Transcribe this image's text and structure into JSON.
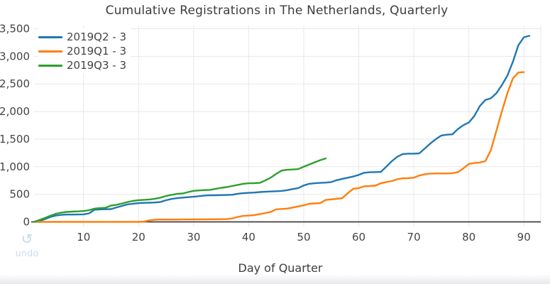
{
  "header": {
    "title": "Cumulative Registrations in The Netherlands, Quarterly"
  },
  "toolbar": {
    "undo_label": "undo",
    "undo_icon": "counterclockwise-arrow"
  },
  "palette": {
    "blue": "#1f77b4",
    "orange": "#ff7f0e",
    "green": "#2ca02c",
    "grid": "#e8e8e8",
    "axis_line": "#3f3f3f",
    "tick_text": "#444444",
    "title_text": "#3d3d3d",
    "undo": "#c3d7ee"
  },
  "chart_data": {
    "type": "line",
    "title": "Cumulative Registrations in The Netherlands, Quarterly",
    "xlabel": "Day of Quarter",
    "ylabel": "",
    "xlim": [
      0,
      93
    ],
    "ylim": [
      0,
      3600
    ],
    "x_ticks": [
      10,
      20,
      30,
      40,
      50,
      60,
      70,
      80,
      90
    ],
    "y_ticks": [
      0,
      500,
      1000,
      1500,
      2000,
      2500,
      3000,
      3500
    ],
    "grid": true,
    "legend_position": "top-left",
    "series": [
      {
        "name": "2019Q2 - 3",
        "color": "#1f77b4",
        "points": [
          [
            1,
            0
          ],
          [
            2,
            15
          ],
          [
            3,
            50
          ],
          [
            4,
            90
          ],
          [
            5,
            115
          ],
          [
            6,
            128
          ],
          [
            7,
            132
          ],
          [
            8,
            133
          ],
          [
            9,
            134
          ],
          [
            10,
            136
          ],
          [
            11,
            155
          ],
          [
            12,
            220
          ],
          [
            13,
            226
          ],
          [
            14,
            229
          ],
          [
            15,
            232
          ],
          [
            16,
            262
          ],
          [
            17,
            290
          ],
          [
            18,
            318
          ],
          [
            19,
            330
          ],
          [
            20,
            340
          ],
          [
            21,
            345
          ],
          [
            22,
            348
          ],
          [
            23,
            351
          ],
          [
            24,
            362
          ],
          [
            25,
            392
          ],
          [
            26,
            415
          ],
          [
            27,
            430
          ],
          [
            28,
            440
          ],
          [
            29,
            448
          ],
          [
            30,
            456
          ],
          [
            31,
            466
          ],
          [
            32,
            478
          ],
          [
            33,
            481
          ],
          [
            34,
            483
          ],
          [
            35,
            485
          ],
          [
            36,
            488
          ],
          [
            37,
            492
          ],
          [
            38,
            510
          ],
          [
            39,
            520
          ],
          [
            40,
            526
          ],
          [
            41,
            531
          ],
          [
            42,
            540
          ],
          [
            43,
            546
          ],
          [
            44,
            551
          ],
          [
            45,
            556
          ],
          [
            46,
            561
          ],
          [
            47,
            575
          ],
          [
            48,
            595
          ],
          [
            49,
            612
          ],
          [
            50,
            660
          ],
          [
            51,
            690
          ],
          [
            52,
            700
          ],
          [
            53,
            706
          ],
          [
            54,
            712
          ],
          [
            55,
            722
          ],
          [
            56,
            755
          ],
          [
            57,
            780
          ],
          [
            58,
            800
          ],
          [
            59,
            822
          ],
          [
            60,
            852
          ],
          [
            61,
            890
          ],
          [
            62,
            900
          ],
          [
            63,
            902
          ],
          [
            64,
            906
          ],
          [
            65,
            1000
          ],
          [
            66,
            1100
          ],
          [
            67,
            1180
          ],
          [
            68,
            1230
          ],
          [
            69,
            1236
          ],
          [
            70,
            1237
          ],
          [
            71,
            1242
          ],
          [
            72,
            1330
          ],
          [
            73,
            1420
          ],
          [
            74,
            1500
          ],
          [
            75,
            1565
          ],
          [
            76,
            1580
          ],
          [
            77,
            1587
          ],
          [
            78,
            1680
          ],
          [
            79,
            1752
          ],
          [
            80,
            1800
          ],
          [
            81,
            1920
          ],
          [
            82,
            2100
          ],
          [
            83,
            2210
          ],
          [
            84,
            2240
          ],
          [
            85,
            2330
          ],
          [
            86,
            2480
          ],
          [
            87,
            2650
          ],
          [
            88,
            2900
          ],
          [
            89,
            3200
          ],
          [
            90,
            3345
          ],
          [
            91,
            3372
          ]
        ]
      },
      {
        "name": "2019Q1 - 3",
        "color": "#ff7f0e",
        "points": [
          [
            1,
            0
          ],
          [
            5,
            0
          ],
          [
            10,
            0
          ],
          [
            15,
            0
          ],
          [
            20,
            0
          ],
          [
            21,
            5
          ],
          [
            22,
            28
          ],
          [
            23,
            40
          ],
          [
            24,
            42
          ],
          [
            26,
            43
          ],
          [
            28,
            44
          ],
          [
            30,
            45
          ],
          [
            32,
            46
          ],
          [
            34,
            47
          ],
          [
            36,
            50
          ],
          [
            37,
            62
          ],
          [
            38,
            90
          ],
          [
            39,
            108
          ],
          [
            40,
            115
          ],
          [
            41,
            121
          ],
          [
            42,
            140
          ],
          [
            43,
            158
          ],
          [
            44,
            180
          ],
          [
            45,
            228
          ],
          [
            46,
            234
          ],
          [
            47,
            240
          ],
          [
            48,
            260
          ],
          [
            49,
            280
          ],
          [
            50,
            300
          ],
          [
            51,
            328
          ],
          [
            52,
            334
          ],
          [
            53,
            340
          ],
          [
            54,
            398
          ],
          [
            55,
            408
          ],
          [
            56,
            418
          ],
          [
            57,
            430
          ],
          [
            58,
            520
          ],
          [
            59,
            600
          ],
          [
            60,
            612
          ],
          [
            61,
            645
          ],
          [
            62,
            650
          ],
          [
            63,
            656
          ],
          [
            64,
            700
          ],
          [
            65,
            722
          ],
          [
            66,
            740
          ],
          [
            67,
            772
          ],
          [
            68,
            790
          ],
          [
            69,
            792
          ],
          [
            70,
            800
          ],
          [
            71,
            840
          ],
          [
            72,
            864
          ],
          [
            73,
            874
          ],
          [
            74,
            877
          ],
          [
            75,
            877
          ],
          [
            76,
            878
          ],
          [
            77,
            882
          ],
          [
            78,
            900
          ],
          [
            79,
            970
          ],
          [
            80,
            1050
          ],
          [
            81,
            1068
          ],
          [
            82,
            1076
          ],
          [
            83,
            1100
          ],
          [
            84,
            1300
          ],
          [
            85,
            1650
          ],
          [
            86,
            2000
          ],
          [
            87,
            2330
          ],
          [
            88,
            2600
          ],
          [
            89,
            2708
          ],
          [
            90,
            2714
          ]
        ]
      },
      {
        "name": "2019Q3 - 3",
        "color": "#2ca02c",
        "points": [
          [
            1,
            0
          ],
          [
            2,
            35
          ],
          [
            3,
            72
          ],
          [
            4,
            112
          ],
          [
            5,
            148
          ],
          [
            6,
            168
          ],
          [
            7,
            180
          ],
          [
            8,
            186
          ],
          [
            9,
            190
          ],
          [
            10,
            197
          ],
          [
            11,
            212
          ],
          [
            12,
            240
          ],
          [
            13,
            250
          ],
          [
            14,
            256
          ],
          [
            15,
            296
          ],
          [
            16,
            310
          ],
          [
            17,
            332
          ],
          [
            18,
            360
          ],
          [
            19,
            380
          ],
          [
            20,
            394
          ],
          [
            21,
            400
          ],
          [
            22,
            406
          ],
          [
            23,
            420
          ],
          [
            24,
            440
          ],
          [
            25,
            470
          ],
          [
            26,
            490
          ],
          [
            27,
            508
          ],
          [
            28,
            515
          ],
          [
            29,
            540
          ],
          [
            30,
            562
          ],
          [
            31,
            570
          ],
          [
            32,
            576
          ],
          [
            33,
            580
          ],
          [
            34,
            600
          ],
          [
            35,
            618
          ],
          [
            36,
            630
          ],
          [
            37,
            650
          ],
          [
            38,
            670
          ],
          [
            39,
            690
          ],
          [
            40,
            700
          ],
          [
            41,
            701
          ],
          [
            42,
            706
          ],
          [
            43,
            750
          ],
          [
            44,
            800
          ],
          [
            45,
            870
          ],
          [
            46,
            930
          ],
          [
            47,
            944
          ],
          [
            48,
            950
          ],
          [
            49,
            956
          ],
          [
            50,
            1000
          ],
          [
            51,
            1040
          ],
          [
            52,
            1080
          ],
          [
            53,
            1118
          ],
          [
            54,
            1150
          ]
        ]
      }
    ]
  }
}
